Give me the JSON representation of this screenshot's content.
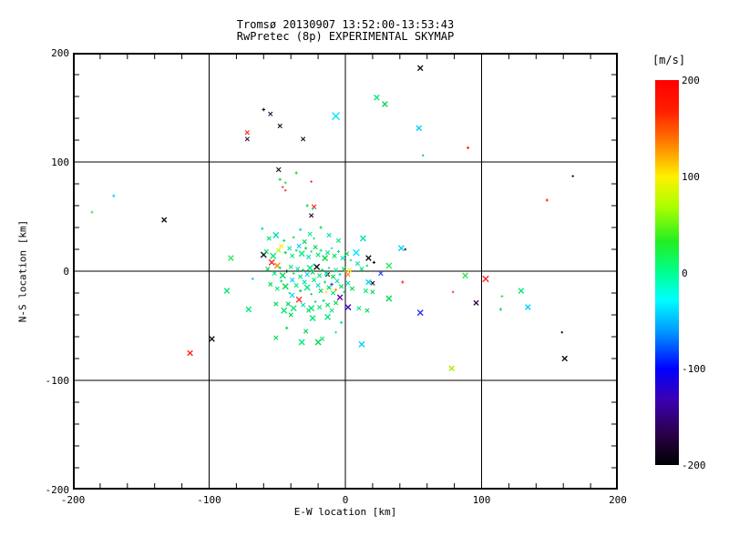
{
  "header": {
    "title_line1": "Tromsø 20130907 13:52:00-13:53:43",
    "title_line2": "RwPretec (8p) EXPERIMENTAL SKYMAP"
  },
  "chart_data": {
    "type": "scatter",
    "title": "Tromsø 20130907 13:52:00-13:53:43",
    "subtitle": "RwPretec (8p) EXPERIMENTAL SKYMAP",
    "xlabel": "E-W location [km]",
    "ylabel": "N-S location [km]",
    "xlim": [
      -200,
      200
    ],
    "ylim": [
      -200,
      200
    ],
    "grid": true,
    "xticks": [
      -200,
      -100,
      0,
      100,
      200
    ],
    "yticks": [
      -200,
      -100,
      0,
      100,
      200
    ],
    "xtick_labels": [
      "-200",
      "-100",
      "0",
      "100",
      "200"
    ],
    "ytick_labels": [
      "-200",
      "-100",
      "0",
      "100",
      "200"
    ],
    "minor_tick_step": 20,
    "colorbar": {
      "title": "[m/s]",
      "lim": [
        -200,
        200
      ],
      "ticks": [
        200,
        100,
        0,
        -100,
        -200
      ],
      "tick_labels": [
        "200",
        "100",
        "0",
        "-100",
        "-200"
      ],
      "stops": [
        [
          "0%",
          "#ff0000"
        ],
        [
          "8%",
          "#ff1e00"
        ],
        [
          "16%",
          "#ff7a00"
        ],
        [
          "25%",
          "#fff000"
        ],
        [
          "33%",
          "#aaff00"
        ],
        [
          "42%",
          "#22ee22"
        ],
        [
          "50%",
          "#00ff90"
        ],
        [
          "57%",
          "#00ffff"
        ],
        [
          "65%",
          "#009dff"
        ],
        [
          "75%",
          "#0000ff"
        ],
        [
          "83%",
          "#3c00b4"
        ],
        [
          "92%",
          "#2a0048"
        ],
        [
          "100%",
          "#000000"
        ]
      ]
    },
    "points": [
      [
        -60,
        148,
        "#111111",
        "+",
        1.8
      ],
      [
        -55,
        144,
        "#2a0a33",
        "x",
        2.2
      ],
      [
        -7,
        142,
        "#00e5ff",
        "x",
        4
      ],
      [
        -48,
        133,
        "#111111",
        "x",
        2.2
      ],
      [
        -72,
        127,
        "#ff2222",
        "x",
        2.2
      ],
      [
        -72,
        121,
        "#3a0a44",
        "x",
        2.2
      ],
      [
        -31,
        121,
        "#111111",
        "x",
        2.2
      ],
      [
        55,
        186,
        "#111111",
        "x",
        2.8
      ],
      [
        23,
        159,
        "#00e87a",
        "x",
        2.8
      ],
      [
        29,
        153,
        "#00d95a",
        "x",
        2.8
      ],
      [
        54,
        131,
        "#00cfff",
        "x",
        2.8
      ],
      [
        90,
        113,
        "#ff2222",
        "+",
        1.6
      ],
      [
        57,
        106,
        "#00c9a0",
        ".",
        1.2
      ],
      [
        167,
        87,
        "#111111",
        ".",
        1.2
      ],
      [
        148,
        65,
        "#ff2222",
        "+",
        1.6
      ],
      [
        -49,
        93,
        "#111111",
        "x",
        2.4
      ],
      [
        -36,
        90,
        "#00d94f",
        "+",
        1.6
      ],
      [
        -48,
        84,
        "#00d94f",
        "+",
        1.6
      ],
      [
        -44,
        81,
        "#2ee65c",
        "+",
        1.6
      ],
      [
        -25,
        82,
        "#ff2222",
        ".",
        1.2
      ],
      [
        -46,
        77,
        "#ff3333",
        ".",
        1.2
      ],
      [
        -44,
        74,
        "#ff3333",
        ".",
        1.2
      ],
      [
        -170,
        69,
        "#00cfff",
        "+",
        1.6
      ],
      [
        -186,
        54,
        "#2ee65c",
        ".",
        1.4
      ],
      [
        -133,
        47,
        "#111111",
        "x",
        2.6
      ],
      [
        -23,
        59,
        "#ff2222",
        "x",
        2.4
      ],
      [
        -25,
        51,
        "#1a0a1a",
        "x",
        2.2
      ],
      [
        -28,
        60,
        "#00d94f",
        "+",
        1.6
      ],
      [
        -24,
        57,
        "#00e87a",
        ".",
        1.2
      ],
      [
        -84,
        12,
        "#2ee65c",
        "x",
        2.8
      ],
      [
        -68,
        -7,
        "#00cfff",
        ".",
        1.4
      ],
      [
        -87,
        -18,
        "#00e87a",
        "x",
        2.8
      ],
      [
        -71,
        -35,
        "#00e87a",
        "x",
        2.8
      ],
      [
        -98,
        -62,
        "#111111",
        "x",
        2.8
      ],
      [
        -114,
        -75,
        "#ff2222",
        "x",
        2.8
      ],
      [
        88,
        -4,
        "#2ee65c",
        "x",
        2.8
      ],
      [
        103,
        -7,
        "#ff2222",
        "x",
        3.2
      ],
      [
        79,
        -19,
        "#ff3333",
        ".",
        1.2
      ],
      [
        96,
        -29,
        "#3a0a55",
        "x",
        2.6
      ],
      [
        129,
        -18,
        "#00e87a",
        "x",
        2.8
      ],
      [
        115,
        -23,
        "#2ee65c",
        ".",
        1.4
      ],
      [
        114,
        -35,
        "#00d94f",
        "+",
        1.6
      ],
      [
        134,
        -33,
        "#00cfff",
        "x",
        2.8
      ],
      [
        159,
        -56,
        "#111111",
        ".",
        1.2
      ],
      [
        161,
        -80,
        "#111111",
        "x",
        2.8
      ],
      [
        78,
        -89,
        "#aaee00",
        "x",
        2.8
      ],
      [
        55,
        -38,
        "#2233ff",
        "x",
        3
      ],
      [
        12,
        -67,
        "#00d2ff",
        "x",
        3
      ],
      [
        42,
        -10,
        "#ff2222",
        "+",
        1.6
      ],
      [
        41,
        21,
        "#00d2ff",
        "x",
        3
      ],
      [
        44,
        20,
        "#111111",
        ".",
        1.2
      ],
      [
        32,
        5,
        "#2ee65c",
        "x",
        3
      ],
      [
        32,
        -25,
        "#00d94f",
        "x",
        3
      ],
      [
        26,
        -2,
        "#2244ff",
        "x",
        2.4
      ],
      [
        17,
        12,
        "#111111",
        "x",
        2.8
      ],
      [
        21,
        8,
        "#111111",
        "+",
        1.6
      ],
      [
        20,
        -11,
        "#111111",
        "x",
        2.2
      ],
      [
        17,
        -10,
        "#00d2ff",
        "x",
        2.8
      ],
      [
        0,
        0,
        "#ff2222",
        "+",
        1.8
      ],
      [
        2,
        -3,
        "#ff8800",
        "x",
        2.2
      ],
      [
        3,
        1,
        "#ffee00",
        "x",
        2.2
      ],
      [
        -60,
        15,
        "#111111",
        "x",
        3
      ],
      [
        -54,
        8,
        "#ff2222",
        "x",
        3
      ],
      [
        -50,
        5,
        "#ff8800",
        "x",
        3
      ],
      [
        -47,
        23,
        "#ffee00",
        "x",
        2.4
      ],
      [
        -49,
        19,
        "#aaff00",
        "x",
        2.2
      ],
      [
        -43,
        0,
        "#111111",
        "+",
        1.6
      ],
      [
        -21,
        4,
        "#111111",
        "x",
        3
      ],
      [
        -13,
        -3,
        "#111111",
        "x",
        2.2
      ],
      [
        -34,
        -26,
        "#ff3333",
        "x",
        3
      ],
      [
        -4,
        -24,
        "#6600aa",
        "x",
        2.8
      ],
      [
        2,
        -33,
        "#4400cc",
        "x",
        3
      ],
      [
        -10,
        -12,
        "#2244ff",
        "+",
        1.8
      ],
      [
        -39,
        -22,
        "#00d2ff",
        "x",
        2.4
      ],
      [
        -14,
        -19,
        "#ffe000",
        ".",
        1.3
      ],
      [
        -7,
        -17,
        "#ff9900",
        "+",
        1.6
      ],
      [
        8,
        17,
        "#00e5ff",
        "x",
        3.4
      ],
      [
        13,
        30,
        "#00e0b0",
        "x",
        3
      ],
      [
        -61,
        39,
        "#00e0b0",
        "+",
        1.6
      ],
      [
        -56,
        30,
        "#00e87a",
        "x",
        2.2
      ],
      [
        -51,
        33,
        "#00e0b0",
        "x",
        3
      ],
      [
        -33,
        38,
        "#00cfff",
        "+",
        1.6
      ],
      [
        -18,
        40,
        "#00d94f",
        "+",
        1.6
      ],
      [
        -26,
        34,
        "#00e87a",
        "x",
        2.2
      ],
      [
        -38,
        31,
        "#00d94f",
        ".",
        1.2
      ],
      [
        -12,
        33,
        "#00e0b0",
        "x",
        2.2
      ],
      [
        -45,
        28,
        "#00e87a",
        "+",
        1.6
      ],
      [
        -30,
        27,
        "#00d94f",
        "x",
        2.2
      ],
      [
        -23,
        30,
        "#00e0b0",
        ".",
        1.2
      ],
      [
        -5,
        28,
        "#00e87a",
        "x",
        2.2
      ],
      [
        -58,
        18,
        "#00d94f",
        "x",
        2.2
      ],
      [
        -53,
        14,
        "#00e87a",
        "x",
        3
      ],
      [
        -44,
        17,
        "#00d94f",
        "+",
        1.6
      ],
      [
        -41,
        21,
        "#00e0b0",
        "x",
        2.2
      ],
      [
        -39,
        14,
        "#00e87a",
        "x",
        2.2
      ],
      [
        -36,
        19,
        "#00d94f",
        ".",
        1.2
      ],
      [
        -34,
        23,
        "#00cfff",
        "x",
        2.2
      ],
      [
        -32,
        16,
        "#00e87a",
        "x",
        3
      ],
      [
        -29,
        21,
        "#00d94f",
        "+",
        1.6
      ],
      [
        -27,
        13,
        "#00e0b0",
        "x",
        2.2
      ],
      [
        -25,
        18,
        "#00e87a",
        ".",
        1.2
      ],
      [
        -22,
        22,
        "#00d94f",
        "x",
        2.2
      ],
      [
        -20,
        15,
        "#00e87a",
        "x",
        2.2
      ],
      [
        -18,
        19,
        "#00e0b0",
        "+",
        1.6
      ],
      [
        -15,
        12,
        "#00d94f",
        "x",
        3
      ],
      [
        -13,
        17,
        "#00e87a",
        "x",
        2.2
      ],
      [
        -10,
        21,
        "#33ccff",
        ".",
        1.2
      ],
      [
        -8,
        14,
        "#00d94f",
        "x",
        2.2
      ],
      [
        -5,
        18,
        "#00e87a",
        "+",
        1.6
      ],
      [
        -2,
        12,
        "#00e0b0",
        "x",
        2.2
      ],
      [
        1,
        16,
        "#00d94f",
        "x",
        2.2
      ],
      [
        4,
        10,
        "#00e87a",
        ".",
        1.2
      ],
      [
        -57,
        2,
        "#00d94f",
        "x",
        2.2
      ],
      [
        -52,
        -2,
        "#00e87a",
        "x",
        2.2
      ],
      [
        -48,
        3,
        "#00e0b0",
        "+",
        1.6
      ],
      [
        -46,
        -4,
        "#00d94f",
        "x",
        3
      ],
      [
        -40,
        4,
        "#00e87a",
        "x",
        2.2
      ],
      [
        -38,
        -2,
        "#00d94f",
        ".",
        1.2
      ],
      [
        -35,
        2,
        "#00e0b0",
        "x",
        2.2
      ],
      [
        -33,
        -5,
        "#00e87a",
        "x",
        2.2
      ],
      [
        -31,
        1,
        "#00d94f",
        "+",
        1.6
      ],
      [
        -28,
        -3,
        "#00cfff",
        "x",
        2.2
      ],
      [
        -26,
        3,
        "#00e87a",
        "x",
        3
      ],
      [
        -24,
        -1,
        "#00d94f",
        "x",
        2.2
      ],
      [
        -23,
        6,
        "#00b8e6",
        ".",
        1.2
      ],
      [
        -19,
        -4,
        "#00e87a",
        "x",
        2.2
      ],
      [
        -17,
        1,
        "#00d94f",
        "+",
        1.6
      ],
      [
        -14,
        -2,
        "#00e0b0",
        "x",
        2.2
      ],
      [
        -12,
        3,
        "#00e87a",
        ".",
        1.2
      ],
      [
        -9,
        -5,
        "#00d94f",
        "x",
        2.2
      ],
      [
        -7,
        1,
        "#00e87a",
        "x",
        2.2
      ],
      [
        -4,
        -3,
        "#00e0b0",
        "+",
        1.6
      ],
      [
        -1,
        2,
        "#00d94f",
        "x",
        2.2
      ],
      [
        9,
        7,
        "#00e0b0",
        "x",
        2.2
      ],
      [
        12,
        2,
        "#00e87a",
        "x",
        2.2
      ],
      [
        16,
        5,
        "#00d94f",
        ".",
        1.2
      ],
      [
        -55,
        -12,
        "#00d94f",
        "x",
        2.2
      ],
      [
        -50,
        -16,
        "#00e87a",
        "x",
        2.2
      ],
      [
        -47,
        -9,
        "#00e0b0",
        "+",
        1.6
      ],
      [
        -44,
        -14,
        "#00d94f",
        "x",
        3
      ],
      [
        -41,
        -20,
        "#00e87a",
        ".",
        1.2
      ],
      [
        -39,
        -8,
        "#00cfff",
        "x",
        2.2
      ],
      [
        -36,
        -13,
        "#00e87a",
        "x",
        2.2
      ],
      [
        -33,
        -18,
        "#00d94f",
        "+",
        1.6
      ],
      [
        -30,
        -10,
        "#00e0b0",
        "x",
        2.2
      ],
      [
        -28,
        -15,
        "#00e87a",
        "x",
        3
      ],
      [
        -25,
        -21,
        "#00d94f",
        ".",
        1.2
      ],
      [
        -23,
        -8,
        "#00e87a",
        "x",
        2.2
      ],
      [
        -20,
        -13,
        "#00e0b0",
        "x",
        2.2
      ],
      [
        -18,
        -18,
        "#00d94f",
        "x",
        2.2
      ],
      [
        -15,
        -10,
        "#00e87a",
        "+",
        1.6
      ],
      [
        -12,
        -15,
        "#00d94f",
        "x",
        2.2
      ],
      [
        -9,
        -20,
        "#00e87a",
        "x",
        2.2
      ],
      [
        -6,
        -9,
        "#00e0b0",
        "x",
        2.2
      ],
      [
        -3,
        -14,
        "#00d94f",
        "x",
        2.2
      ],
      [
        -1,
        -19,
        "#00e87a",
        ".",
        1.2
      ],
      [
        2,
        -11,
        "#00e0b0",
        "x",
        2.2
      ],
      [
        5,
        -16,
        "#00d94f",
        "x",
        2.2
      ],
      [
        15,
        -18,
        "#00e87a",
        "x",
        2.2
      ],
      [
        20,
        -19,
        "#00d94f",
        "x",
        2.2
      ],
      [
        -51,
        -30,
        "#00d94f",
        "x",
        2.2
      ],
      [
        -45,
        -36,
        "#00e87a",
        "x",
        3
      ],
      [
        -40,
        -40,
        "#00d94f",
        "x",
        2.2
      ],
      [
        -42,
        -30,
        "#00d94f",
        "x",
        2.2
      ],
      [
        -38,
        -34,
        "#00e87a",
        "x",
        3
      ],
      [
        -31,
        -31,
        "#00e0b0",
        "x",
        2.2
      ],
      [
        -27,
        -36,
        "#00d94f",
        "x",
        2.2
      ],
      [
        -25,
        -34,
        "#00e87a",
        "x",
        3
      ],
      [
        -22,
        -28,
        "#00d94f",
        ".",
        1.2
      ],
      [
        -19,
        -33,
        "#00e87a",
        "x",
        2.2
      ],
      [
        -16,
        -27,
        "#00e0b0",
        "+",
        1.6
      ],
      [
        -13,
        -31,
        "#00d94f",
        "x",
        2.2
      ],
      [
        -10,
        -36,
        "#00e87a",
        "x",
        2.2
      ],
      [
        -7,
        -29,
        "#00d94f",
        "x",
        2.2
      ],
      [
        10,
        -34,
        "#00e87a",
        "x",
        2.2
      ],
      [
        16,
        -36,
        "#00d94f",
        "x",
        2.2
      ],
      [
        -43,
        -52,
        "#00d94f",
        "+",
        1.6
      ],
      [
        -24,
        -43,
        "#00e87a",
        "x",
        3
      ],
      [
        -13,
        -42,
        "#00e87a",
        "x",
        3
      ],
      [
        -29,
        -55,
        "#00d94f",
        "x",
        2.2
      ],
      [
        -3,
        -47,
        "#00e87a",
        "+",
        1.6
      ],
      [
        -7,
        -56,
        "#00e0b0",
        ".",
        1.2
      ],
      [
        -32,
        -65,
        "#00e87a",
        "x",
        3
      ],
      [
        -20,
        -65,
        "#00d94f",
        "x",
        3
      ],
      [
        -17,
        -62,
        "#00e87a",
        "x",
        2.2
      ],
      [
        -51,
        -61,
        "#00d94f",
        "x",
        2.2
      ]
    ]
  }
}
